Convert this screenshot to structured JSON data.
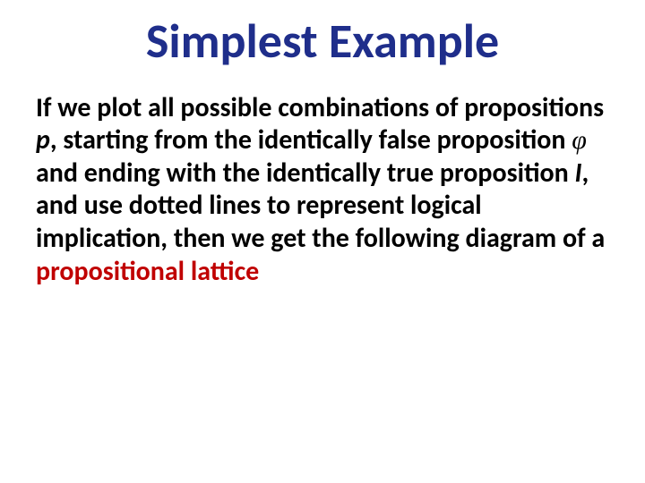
{
  "title": {
    "text": "Simplest Example",
    "color": "#1f2e8b",
    "fontsize": 54
  },
  "body": {
    "fontsize": 30,
    "color": "#000000",
    "highlight_color": "#c00000",
    "seg1": "If we plot all possible combinations of propositions ",
    "p_var": "p",
    "seg2": ", starting from the identically false proposition ",
    "phi": "φ",
    "seg3": "  and ending with the identically true proposition ",
    "i_var": "I",
    "seg4": ", and use dotted lines to represent logical implication, then we get the following diagram of a ",
    "highlight": "propositional lattice"
  }
}
